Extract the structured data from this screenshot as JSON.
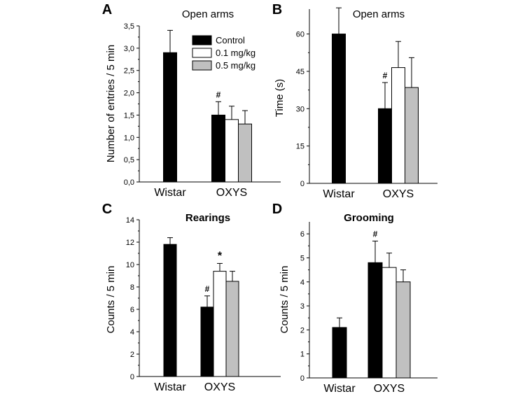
{
  "chart_data": [
    {
      "type": "bar",
      "panel_letter": "A",
      "title": "Open arms",
      "ylabel": "Number of entries / 5 min",
      "categories": [
        "Wistar",
        "OXYS"
      ],
      "ylim": [
        0,
        3.5
      ],
      "yticks": [
        "0,0",
        "0,5",
        "1,0",
        "1,5",
        "2,0",
        "2,5",
        "3,0",
        "3,5"
      ],
      "series": [
        {
          "name": "Control",
          "values": [
            2.9,
            1.5
          ],
          "errors": [
            0.5,
            0.3
          ],
          "color": "#000000"
        },
        {
          "name": "0.1 mg/kg",
          "values": [
            null,
            1.4
          ],
          "errors": [
            null,
            0.3
          ],
          "color": "#ffffff"
        },
        {
          "name": "0.5 mg/kg",
          "values": [
            null,
            1.3
          ],
          "errors": [
            null,
            0.3
          ],
          "color": "#c0c0c0"
        }
      ],
      "annotations": [
        {
          "series": 0,
          "category": 1,
          "text": "#"
        }
      ],
      "legend": "top-right"
    },
    {
      "type": "bar",
      "panel_letter": "B",
      "title": "Open arms",
      "ylabel": "Time (s)",
      "categories": [
        "Wistar",
        "OXYS"
      ],
      "ylim": [
        0,
        70
      ],
      "yticks": [
        "0",
        "15",
        "30",
        "45",
        "60"
      ],
      "series": [
        {
          "name": "Control",
          "values": [
            60,
            30
          ],
          "errors": [
            10.5,
            10.5
          ],
          "color": "#000000"
        },
        {
          "name": "0.1 mg/kg",
          "values": [
            null,
            46.5
          ],
          "errors": [
            null,
            10.5
          ],
          "color": "#ffffff"
        },
        {
          "name": "0.5 mg/kg",
          "values": [
            null,
            38.5
          ],
          "errors": [
            null,
            12
          ],
          "color": "#c0c0c0"
        }
      ],
      "annotations": [
        {
          "series": 0,
          "category": 1,
          "text": "#"
        }
      ]
    },
    {
      "type": "bar",
      "panel_letter": "C",
      "title": "Rearings",
      "ylabel": "Counts / 5 min",
      "categories": [
        "Wistar",
        "OXYS"
      ],
      "ylim": [
        0,
        14
      ],
      "yticks": [
        "0",
        "2",
        "4",
        "6",
        "8",
        "10",
        "12",
        "14"
      ],
      "series": [
        {
          "name": "Control",
          "values": [
            11.8,
            6.2
          ],
          "errors": [
            0.6,
            1.0
          ],
          "color": "#000000"
        },
        {
          "name": "0.1 mg/kg",
          "values": [
            null,
            9.4
          ],
          "errors": [
            null,
            0.7
          ],
          "color": "#ffffff"
        },
        {
          "name": "0.5 mg/kg",
          "values": [
            null,
            8.5
          ],
          "errors": [
            null,
            0.9
          ],
          "color": "#c0c0c0"
        }
      ],
      "annotations": [
        {
          "series": 0,
          "category": 1,
          "text": "#"
        },
        {
          "series": 1,
          "category": 1,
          "text": "*"
        }
      ]
    },
    {
      "type": "bar",
      "panel_letter": "D",
      "title": "Grooming",
      "ylabel": "Counts / 5 min",
      "categories": [
        "Wistar",
        "OXYS"
      ],
      "ylim": [
        0,
        6.5
      ],
      "yticks": [
        "0",
        "1",
        "2",
        "3",
        "4",
        "5",
        "6"
      ],
      "series": [
        {
          "name": "Control",
          "values": [
            2.1,
            4.8
          ],
          "errors": [
            0.4,
            0.9
          ],
          "color": "#000000"
        },
        {
          "name": "0.1 mg/kg",
          "values": [
            null,
            4.6
          ],
          "errors": [
            null,
            0.6
          ],
          "color": "#ffffff"
        },
        {
          "name": "0.5 mg/kg",
          "values": [
            null,
            4.0
          ],
          "errors": [
            null,
            0.5
          ],
          "color": "#c0c0c0"
        }
      ],
      "annotations": [
        {
          "series": 0,
          "category": 1,
          "text": "#"
        }
      ]
    }
  ]
}
